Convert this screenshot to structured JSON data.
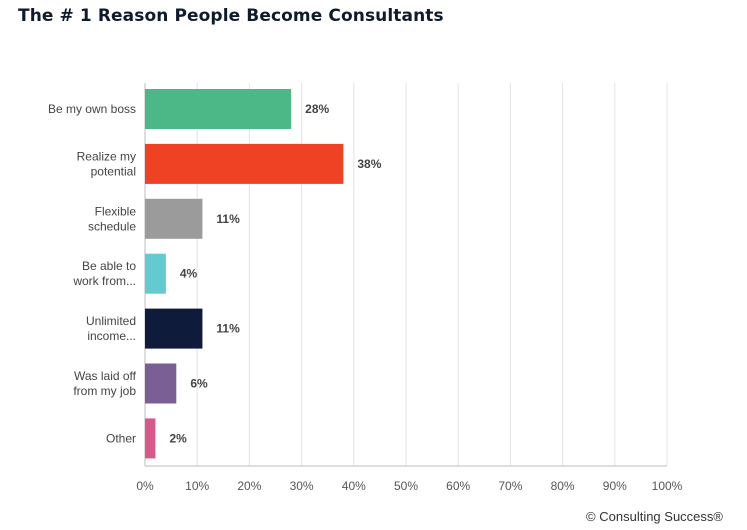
{
  "title": "The # 1 Reason People Become Consultants",
  "footer": "© Consulting Success®",
  "chart_data": {
    "type": "bar",
    "orientation": "horizontal",
    "categories": [
      [
        "Be my own boss"
      ],
      [
        "Realize my",
        "potential"
      ],
      [
        "Flexible",
        "schedule"
      ],
      [
        "Be able to",
        "work from..."
      ],
      [
        "Unlimited",
        "income..."
      ],
      [
        "Was laid off",
        "from my job"
      ],
      [
        "Other"
      ]
    ],
    "values": [
      28,
      38,
      11,
      4,
      11,
      6,
      2
    ],
    "value_labels": [
      "28%",
      "38%",
      "11%",
      "4%",
      "11%",
      "6%",
      "2%"
    ],
    "colors": [
      "#4db887",
      "#ef4123",
      "#9b9b9b",
      "#63cbd0",
      "#0f1b3a",
      "#7a5f94",
      "#d9588a"
    ],
    "xlim": [
      0,
      100
    ],
    "x_ticks": [
      "0%",
      "10%",
      "20%",
      "30%",
      "40%",
      "50%",
      "60%",
      "70%",
      "80%",
      "90%",
      "100%"
    ],
    "grid": "vertical",
    "legend": "none"
  }
}
